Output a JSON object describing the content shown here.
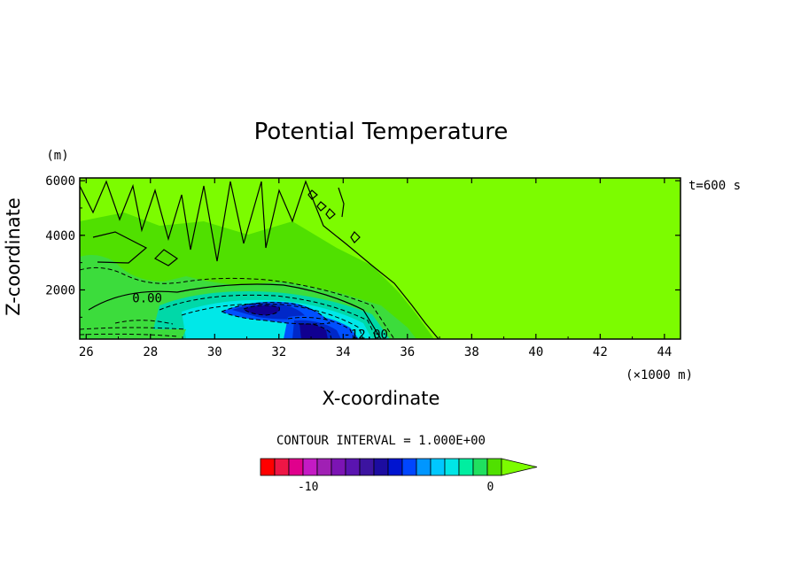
{
  "chart_data": {
    "type": "contour",
    "title": "Potential Temperature",
    "xlabel": "X-coordinate",
    "ylabel": "Z-coordinate",
    "x_unit": "(×1000 m)",
    "y_unit": "(m)",
    "time_label": "t=600 s",
    "xlim": [
      25.8,
      44.5
    ],
    "ylim": [
      200,
      6100
    ],
    "xticks": [
      "26",
      "28",
      "30",
      "32",
      "34",
      "36",
      "38",
      "40",
      "42",
      "44"
    ],
    "xtick_values": [
      26,
      28,
      30,
      32,
      34,
      36,
      38,
      40,
      42,
      44
    ],
    "yticks": [
      "2000",
      "4000",
      "6000"
    ],
    "ytick_values": [
      2000,
      4000,
      6000
    ],
    "contour_labels": [
      {
        "text": "0.00",
        "x": 27.9,
        "z": 1700
      },
      {
        "text": "-12.00",
        "x": 34.7,
        "z": 380
      }
    ],
    "contour_interval": "CONTOUR INTERVAL = 1.000E+00",
    "colorbar": {
      "min": -13,
      "max": 1,
      "tick_labels": [
        "-10",
        "0"
      ],
      "tick_values": [
        -10,
        0
      ],
      "colors": [
        "#ff0000",
        "#ee1646",
        "#e0008c",
        "#c41ac4",
        "#a020b4",
        "#7c14b4",
        "#5a14b0",
        "#3c14a0",
        "#1c0ca0",
        "#0014d0",
        "#0046ff",
        "#0096ff",
        "#00c8ff",
        "#00e6e6",
        "#00eea0",
        "#20e060",
        "#50e000",
        "#7cfc00"
      ]
    },
    "field_colors": {
      "background": "#7cfc00",
      "light_green": "#3cdc3c",
      "teal": "#00d8a8",
      "cyan": "#00e8e8",
      "blue": "#0050ff",
      "deep_blue": "#0028c8",
      "navy": "#100090"
    }
  }
}
